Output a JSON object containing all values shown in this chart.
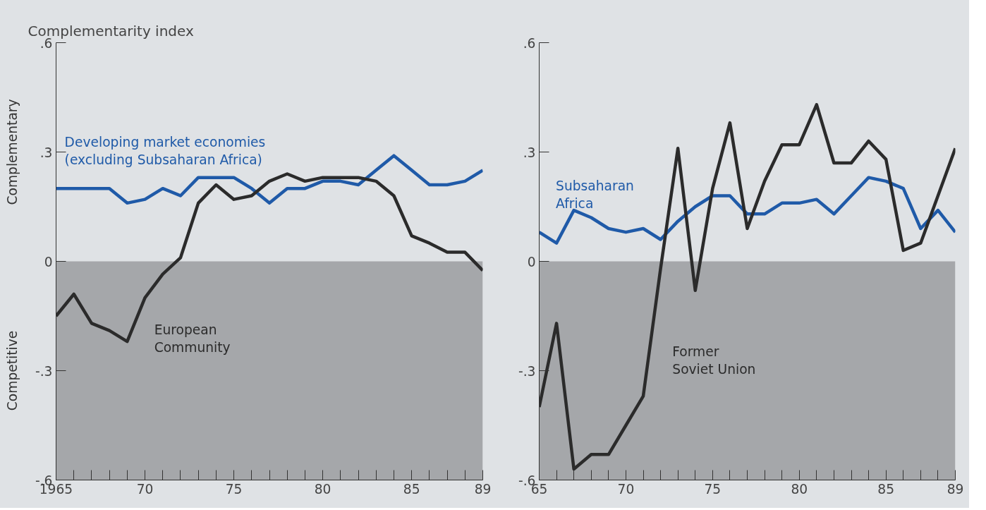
{
  "chart_data": [
    {
      "type": "line",
      "ylabel": "Complementarity index",
      "annotations": [
        "Complementary",
        "Competitive"
      ],
      "x": [
        1965,
        1966,
        1967,
        1968,
        1969,
        1970,
        1971,
        1972,
        1973,
        1974,
        1975,
        1976,
        1977,
        1978,
        1979,
        1980,
        1981,
        1982,
        1983,
        1984,
        1985,
        1986,
        1987,
        1988,
        1989
      ],
      "series": [
        {
          "name": "Developing market economies\n(excluding Subsaharan Africa)",
          "color": "#1f5aa8",
          "values": [
            0.2,
            0.2,
            0.2,
            0.2,
            0.16,
            0.17,
            0.2,
            0.18,
            0.23,
            0.23,
            0.23,
            0.2,
            0.16,
            0.2,
            0.2,
            0.22,
            0.22,
            0.21,
            0.25,
            0.29,
            0.25,
            0.21,
            0.21,
            0.22,
            0.25
          ]
        },
        {
          "name": "European\nCommunity",
          "color": "#2b2b2b",
          "values": [
            -0.15,
            -0.09,
            -0.17,
            -0.19,
            -0.22,
            -0.1,
            -0.035,
            0.01,
            0.16,
            0.21,
            0.17,
            0.18,
            0.22,
            0.24,
            0.22,
            0.23,
            0.23,
            0.23,
            0.22,
            0.18,
            0.07,
            0.05,
            0.025,
            0.025,
            -0.025
          ]
        }
      ],
      "xlim": [
        1965,
        1989
      ],
      "ylim": [
        -0.6,
        0.6
      ],
      "xticks": [
        {
          "value": 1965,
          "label": "1965"
        },
        {
          "value": 1966,
          "label": null
        },
        {
          "value": 1967,
          "label": null
        },
        {
          "value": 1968,
          "label": null
        },
        {
          "value": 1969,
          "label": null
        },
        {
          "value": 1970,
          "label": "70"
        },
        {
          "value": 1971,
          "label": null
        },
        {
          "value": 1972,
          "label": null
        },
        {
          "value": 1973,
          "label": null
        },
        {
          "value": 1974,
          "label": null
        },
        {
          "value": 1975,
          "label": "75"
        },
        {
          "value": 1976,
          "label": null
        },
        {
          "value": 1977,
          "label": null
        },
        {
          "value": 1978,
          "label": null
        },
        {
          "value": 1979,
          "label": null
        },
        {
          "value": 1980,
          "label": "80"
        },
        {
          "value": 1981,
          "label": null
        },
        {
          "value": 1982,
          "label": null
        },
        {
          "value": 1983,
          "label": null
        },
        {
          "value": 1984,
          "label": null
        },
        {
          "value": 1985,
          "label": "85"
        },
        {
          "value": 1986,
          "label": null
        },
        {
          "value": 1987,
          "label": null
        },
        {
          "value": 1988,
          "label": null
        },
        {
          "value": 1989,
          "label": "89"
        }
      ],
      "yticks": [
        {
          "value": 0.6,
          "label": ".6"
        },
        {
          "value": 0.3,
          "label": ".3"
        },
        0,
        {
          "value": -0.3,
          "label": "-.3"
        },
        {
          "value": -0.6,
          "label": "-.6"
        }
      ],
      "bands": [
        {
          "axis": "y",
          "from": -0.6,
          "to": 0,
          "color": "#a5a7aa"
        }
      ],
      "grid": false,
      "line_style": "solid",
      "marker": "none"
    },
    {
      "type": "line",
      "x": [
        1965,
        1966,
        1967,
        1968,
        1969,
        1970,
        1971,
        1972,
        1973,
        1974,
        1975,
        1976,
        1977,
        1978,
        1979,
        1980,
        1981,
        1982,
        1983,
        1984,
        1985,
        1986,
        1987,
        1988,
        1989
      ],
      "series": [
        {
          "name": "Subsaharan\nAfrica",
          "color": "#1f5aa8",
          "values": [
            0.08,
            0.05,
            0.14,
            0.12,
            0.09,
            0.08,
            0.09,
            0.06,
            0.11,
            0.15,
            0.18,
            0.18,
            0.13,
            0.13,
            0.16,
            0.16,
            0.17,
            0.13,
            0.18,
            0.23,
            0.22,
            0.2,
            0.09,
            0.14,
            0.08
          ]
        },
        {
          "name": "Former\nSoviet Union",
          "color": "#2b2b2b",
          "values": [
            -0.4,
            -0.17,
            -0.57,
            -0.53,
            -0.53,
            -0.45,
            -0.37,
            -0.02,
            0.31,
            -0.08,
            0.2,
            0.38,
            0.09,
            0.22,
            0.32,
            0.32,
            0.43,
            0.27,
            0.27,
            0.33,
            0.28,
            0.03,
            0.05,
            0.18,
            0.31
          ]
        }
      ],
      "xlim": [
        1965,
        1989
      ],
      "ylim": [
        -0.6,
        0.6
      ],
      "xticks": [
        {
          "value": 1965,
          "label": "65"
        },
        {
          "value": 1966,
          "label": null
        },
        {
          "value": 1967,
          "label": null
        },
        {
          "value": 1968,
          "label": null
        },
        {
          "value": 1969,
          "label": null
        },
        {
          "value": 1970,
          "label": "70"
        },
        {
          "value": 1971,
          "label": null
        },
        {
          "value": 1972,
          "label": null
        },
        {
          "value": 1973,
          "label": null
        },
        {
          "value": 1974,
          "label": null
        },
        {
          "value": 1975,
          "label": "75"
        },
        {
          "value": 1976,
          "label": null
        },
        {
          "value": 1977,
          "label": null
        },
        {
          "value": 1978,
          "label": null
        },
        {
          "value": 1979,
          "label": null
        },
        {
          "value": 1980,
          "label": "80"
        },
        {
          "value": 1981,
          "label": null
        },
        {
          "value": 1982,
          "label": null
        },
        {
          "value": 1983,
          "label": null
        },
        {
          "value": 1984,
          "label": null
        },
        {
          "value": 1985,
          "label": "85"
        },
        {
          "value": 1986,
          "label": null
        },
        {
          "value": 1987,
          "label": null
        },
        {
          "value": 1988,
          "label": null
        },
        {
          "value": 1989,
          "label": "89"
        }
      ],
      "yticks": [
        {
          "value": 0.6,
          "label": ".6"
        },
        {
          "value": 0.3,
          "label": ".3"
        },
        0,
        {
          "value": -0.3,
          "label": "-.3"
        },
        {
          "value": -0.6,
          "label": "-.6"
        }
      ],
      "bands": [
        {
          "axis": "y",
          "from": -0.6,
          "to": 0,
          "color": "#a5a7aa"
        }
      ],
      "grid": false,
      "line_style": "solid",
      "marker": "none"
    }
  ]
}
